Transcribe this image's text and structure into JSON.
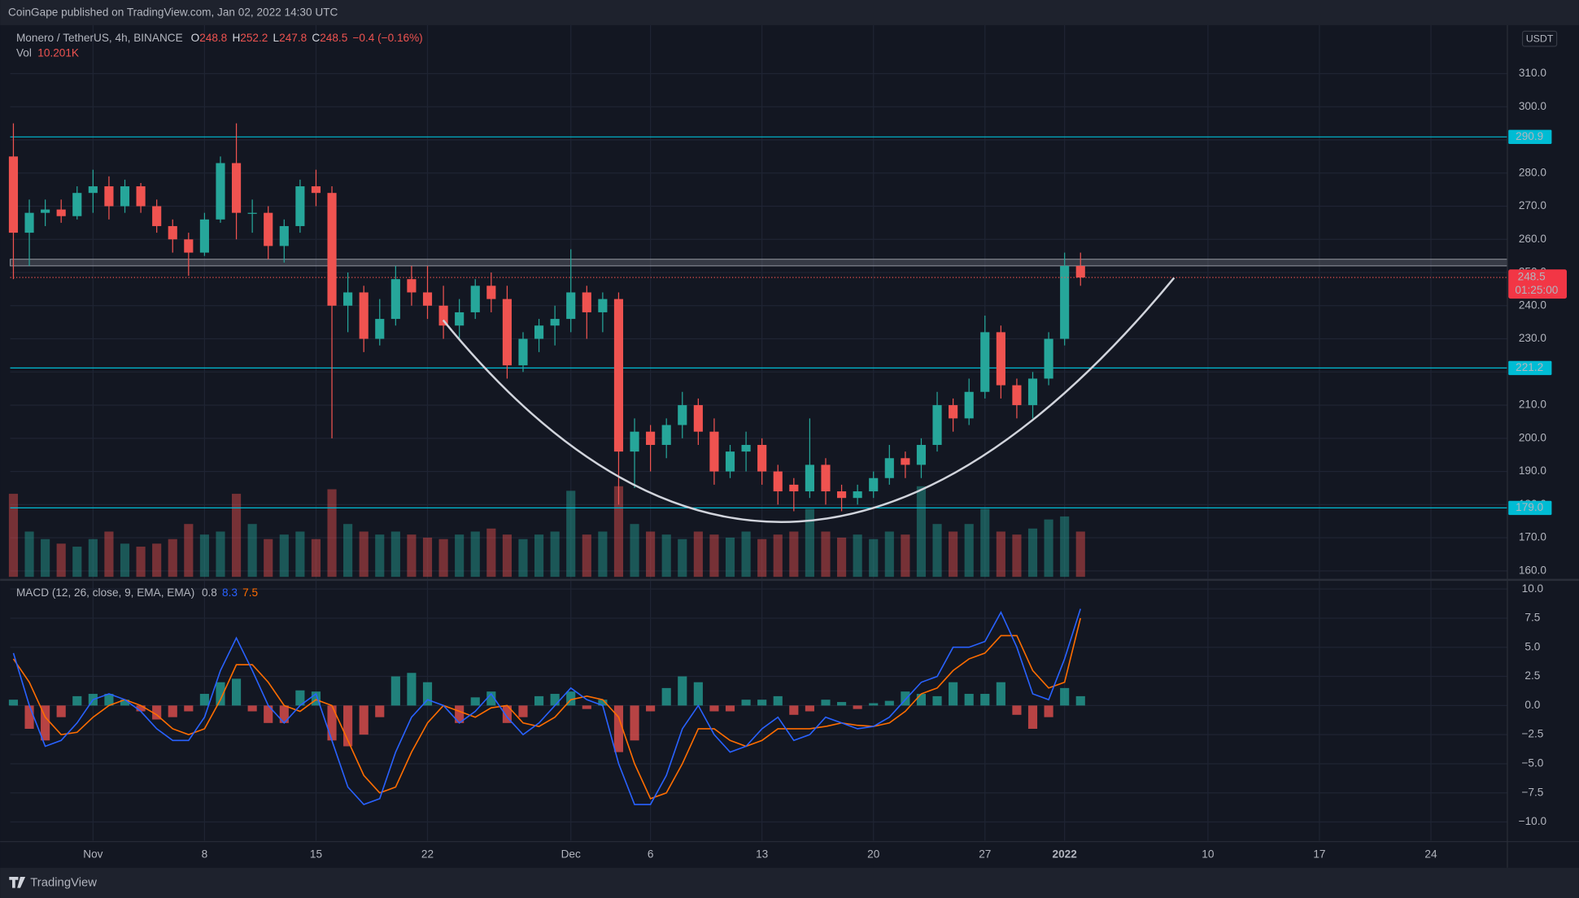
{
  "header": {
    "publisher": "CoinGape published on TradingView.com, Jan 02, 2022 14:30 UTC"
  },
  "footer": {
    "brand": "TradingView"
  },
  "chart_data": [
    {
      "type": "candlestick",
      "title": "Monero / TetherUS, 4h, BINANCE",
      "legend_values": [
        {
          "label": "O",
          "value": 248.8
        },
        {
          "label": "H",
          "value": 252.2
        },
        {
          "label": "L",
          "value": 247.8
        },
        {
          "label": "C",
          "value": 248.5
        }
      ],
      "change": "−0.4 (−0.16%)",
      "currency": "USDT",
      "volume_label": "Vol",
      "volume_last": "10.201K",
      "up_color": "#26a69a",
      "down_color": "#ef5350",
      "level_color": "#00bcd4",
      "grid": true,
      "xlim": [
        -5.2,
        88.8
      ],
      "xticks": [
        {
          "value": 0,
          "label": "Nov"
        },
        {
          "value": 7,
          "label": "8"
        },
        {
          "value": 14,
          "label": "15"
        },
        {
          "value": 21,
          "label": "22"
        },
        {
          "value": 30,
          "label": "Dec"
        },
        {
          "value": 35,
          "label": "6"
        },
        {
          "value": 42,
          "label": "13"
        },
        {
          "value": 49,
          "label": "20"
        },
        {
          "value": 56,
          "label": "27"
        },
        {
          "value": 61,
          "label": "2022"
        },
        {
          "value": 70,
          "label": "10"
        },
        {
          "value": 77,
          "label": "17"
        },
        {
          "value": 84,
          "label": "24"
        }
      ],
      "ylim": [
        157.6,
        324.6
      ],
      "yticks": [
        {
          "value": 160,
          "label": "160.0"
        },
        {
          "value": 170,
          "label": "170.0"
        },
        {
          "value": 180,
          "label": "180.0"
        },
        {
          "value": 190,
          "label": "190.0"
        },
        {
          "value": 200,
          "label": "200.0"
        },
        {
          "value": 210,
          "label": "210.0"
        },
        {
          "value": 220,
          "label": "220.0"
        },
        {
          "value": 230,
          "label": "230.0"
        },
        {
          "value": 240,
          "label": "240.0"
        },
        {
          "value": 250,
          "label": "250.0"
        },
        {
          "value": 260,
          "label": "260.0"
        },
        {
          "value": 270,
          "label": "270.0"
        },
        {
          "value": 280,
          "label": "280.0"
        },
        {
          "value": 290,
          "label": "290.0"
        },
        {
          "value": 300,
          "label": "300.0"
        },
        {
          "value": 310,
          "label": "310.0"
        }
      ],
      "levels": [
        290.9,
        221.2,
        {
          "value": 179,
          "label": "179.0"
        }
      ],
      "resistance_zone": [
        252,
        254
      ],
      "last_price": 248.5,
      "countdown": "01:25:00",
      "x": [
        -5,
        -4,
        -3,
        -2,
        -1,
        0,
        1,
        2,
        3,
        4,
        5,
        6,
        7,
        8,
        9,
        10,
        11,
        12,
        13,
        14,
        15,
        16,
        17,
        18,
        19,
        20,
        21,
        22,
        23,
        24,
        25,
        26,
        27,
        28,
        29,
        30,
        31,
        32,
        33,
        34,
        35,
        36,
        37,
        38,
        39,
        40,
        41,
        42,
        43,
        44,
        45,
        46,
        47,
        48,
        49,
        50,
        51,
        52,
        53,
        54,
        55,
        56,
        57,
        58,
        59,
        60,
        61,
        62
      ],
      "open": [
        285,
        262,
        268,
        269,
        267,
        274,
        276,
        270,
        276,
        270,
        264,
        260,
        256,
        266,
        283,
        268,
        268,
        258,
        264,
        276,
        274,
        240,
        244,
        230,
        236,
        248,
        244,
        240,
        234,
        238,
        246,
        242,
        222,
        230,
        234,
        236,
        244,
        238,
        242,
        196,
        202,
        198,
        204,
        210,
        202,
        190,
        196,
        198,
        190,
        186,
        184,
        192,
        184,
        182,
        184,
        188,
        194,
        192,
        198,
        210,
        206,
        214,
        232,
        216,
        210,
        218,
        230,
        252
      ],
      "high": [
        295,
        272,
        272,
        272,
        276,
        281,
        279,
        278,
        277,
        272,
        266,
        262,
        268,
        285,
        295,
        272,
        270,
        266,
        278,
        281,
        276,
        250,
        246,
        242,
        252,
        252,
        252,
        246,
        242,
        248,
        250,
        246,
        232,
        236,
        240,
        257,
        246,
        244,
        244,
        206,
        204,
        206,
        214,
        212,
        206,
        198,
        202,
        200,
        192,
        188,
        206,
        194,
        186,
        186,
        190,
        198,
        196,
        200,
        214,
        212,
        218,
        237,
        234,
        218,
        220,
        232,
        256,
        256
      ],
      "low": [
        248,
        252,
        264,
        265,
        266,
        268,
        266,
        268,
        268,
        262,
        256,
        249,
        255,
        265,
        260,
        262,
        254,
        253,
        262,
        270,
        200,
        232,
        226,
        228,
        234,
        240,
        236,
        230,
        230,
        236,
        238,
        218,
        220,
        226,
        228,
        232,
        230,
        232,
        180,
        185,
        190,
        194,
        200,
        198,
        186,
        188,
        190,
        186,
        180,
        178,
        182,
        180,
        178,
        180,
        182,
        186,
        188,
        188,
        196,
        202,
        204,
        212,
        212,
        206,
        206,
        216,
        228,
        246
      ],
      "close": [
        262,
        268,
        269,
        267,
        274,
        276,
        270,
        276,
        270,
        264,
        260,
        256,
        266,
        283,
        268,
        268,
        258,
        264,
        276,
        274,
        240,
        244,
        230,
        236,
        248,
        244,
        240,
        234,
        238,
        246,
        242,
        222,
        230,
        234,
        236,
        244,
        238,
        242,
        196,
        202,
        198,
        204,
        210,
        202,
        190,
        196,
        198,
        190,
        184,
        184,
        192,
        184,
        182,
        184,
        188,
        194,
        192,
        198,
        210,
        206,
        214,
        232,
        216,
        210,
        218,
        230,
        252,
        248.5
      ],
      "volume": [
        55,
        30,
        25,
        22,
        20,
        25,
        30,
        22,
        20,
        22,
        25,
        35,
        28,
        30,
        55,
        35,
        25,
        28,
        30,
        25,
        58,
        35,
        30,
        28,
        30,
        28,
        26,
        25,
        28,
        30,
        32,
        28,
        25,
        28,
        30,
        57,
        28,
        30,
        60,
        35,
        30,
        28,
        25,
        30,
        28,
        26,
        30,
        25,
        28,
        30,
        45,
        30,
        26,
        28,
        25,
        30,
        28,
        60,
        35,
        30,
        35,
        45,
        30,
        28,
        32,
        38,
        40,
        30
      ],
      "vlim": [
        0,
        100
      ]
    },
    {
      "type": "macd",
      "label": "MACD (12, 26, close, 9, EMA, EMA)",
      "readings": [
        {
          "value": 0.8,
          "color": "#b2b5be"
        },
        {
          "value": 8.3,
          "color": "#2962ff"
        },
        {
          "value": 7.5,
          "color": "#ff6d00"
        }
      ],
      "grid": true,
      "ylim": [
        -11.6,
        10.7
      ],
      "yticks": [
        {
          "value": 10,
          "label": "10.0"
        },
        {
          "value": 7.5,
          "label": "7.5"
        },
        {
          "value": 5,
          "label": "5.0"
        },
        {
          "value": 2.5,
          "label": "2.5"
        },
        {
          "value": 0,
          "label": "0.0"
        },
        {
          "value": -2.5,
          "label": "−2.5"
        },
        {
          "value": -5,
          "label": "−5.0"
        },
        {
          "value": -7.5,
          "label": "−7.5"
        },
        {
          "value": -10,
          "label": "−10.0"
        }
      ],
      "macd": {
        "color": "#2962ff",
        "values": [
          4.5,
          0,
          -3.5,
          -3,
          -1.5,
          0.5,
          1,
          0.5,
          -0.5,
          -2,
          -3,
          -3,
          -1,
          3,
          5.8,
          3,
          0,
          -1.5,
          0,
          1,
          -3,
          -7,
          -8.5,
          -8,
          -4,
          -1,
          0.5,
          0,
          -1.5,
          -0.5,
          1,
          -1,
          -2.5,
          -1.5,
          0,
          1.5,
          0.5,
          0,
          -5,
          -8.5,
          -8.5,
          -6,
          -2,
          0,
          -2.5,
          -4,
          -3.5,
          -2,
          -1,
          -3,
          -2.5,
          -1,
          -1.5,
          -2,
          -1.8,
          -1,
          0.5,
          2,
          2.5,
          5,
          5,
          5.5,
          8,
          5,
          1,
          0.5,
          4,
          8.3
        ]
      },
      "signal": {
        "color": "#ff6d00",
        "values": [
          4,
          2,
          -1,
          -2.5,
          -2.3,
          -1,
          0,
          0.5,
          0,
          -0.8,
          -2,
          -2.5,
          -2,
          0.5,
          3.5,
          3.5,
          2,
          0,
          -0.5,
          0.5,
          0,
          -3,
          -6,
          -7.5,
          -7,
          -4,
          -1.5,
          0,
          -0.5,
          -1,
          -0.2,
          0,
          -1.5,
          -1.8,
          -1,
          0.5,
          0.8,
          0.5,
          -1,
          -5,
          -8,
          -7.5,
          -5,
          -2,
          -2,
          -3,
          -3.5,
          -3,
          -2,
          -2,
          -2,
          -1.8,
          -1.5,
          -1.7,
          -1.8,
          -1.5,
          -0.5,
          1,
          1.5,
          3,
          4,
          4.5,
          6,
          6,
          3,
          1.5,
          2,
          7.5
        ]
      },
      "histogram": {
        "up_color": "#26a69a",
        "down_color": "#ef5350",
        "values": [
          0.5,
          -2,
          -3,
          -1,
          0.8,
          1,
          1,
          0.5,
          -0.5,
          -1.2,
          -1,
          -0.5,
          1,
          2,
          2.3,
          -0.5,
          -1.5,
          -1.5,
          1.3,
          1.2,
          -3,
          -3.5,
          -2.5,
          -1,
          2.5,
          2.8,
          2,
          0,
          -1.5,
          0.7,
          1.2,
          -1.5,
          -1,
          0.8,
          1,
          1.2,
          -0.3,
          0.5,
          -4,
          -3,
          -0.5,
          1.5,
          2.5,
          2,
          -0.5,
          -0.5,
          0.5,
          0.5,
          0.8,
          -0.8,
          -0.5,
          0.5,
          0.3,
          -0.3,
          0.2,
          0.4,
          1.2,
          1,
          0.8,
          2,
          1,
          1,
          2,
          -0.8,
          -2,
          -1,
          1.5,
          0.8
        ]
      }
    }
  ]
}
